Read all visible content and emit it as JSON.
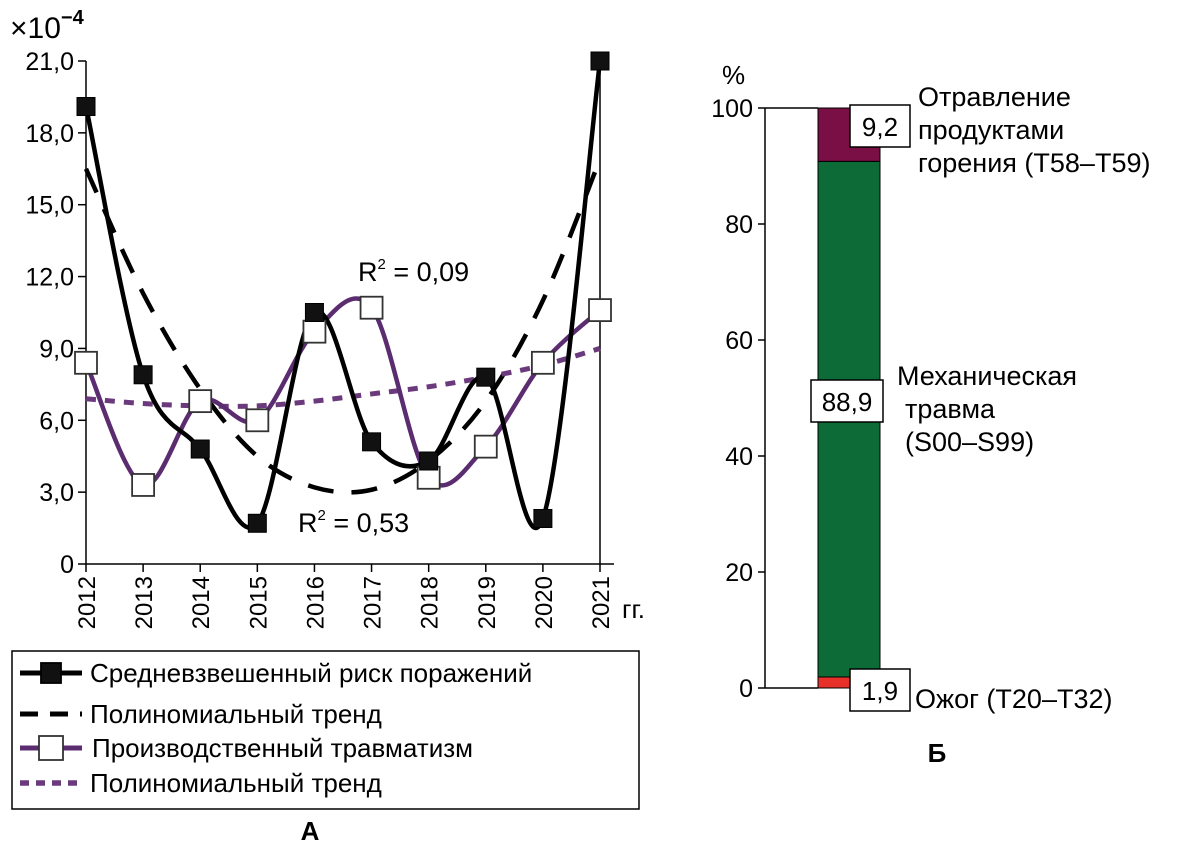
{
  "colors": {
    "risk": "#000000",
    "injury": "#5b2c6f",
    "injury_trend": "#6b3a7d",
    "bar_burn": "#e8302a",
    "bar_mech": "#0d6b38",
    "bar_poison": "#7a0f45"
  },
  "chart_data": [
    {
      "type": "line",
      "panel_label": "А",
      "y_multiplier": "×10",
      "y_multiplier_exp": "−4",
      "x_unit": "гг.",
      "xlim": [
        2012,
        2021
      ],
      "ylim": [
        0,
        21
      ],
      "x": [
        "2012",
        "2013",
        "2014",
        "2015",
        "2016",
        "2017",
        "2018",
        "2019",
        "2020",
        "2021"
      ],
      "y_ticks": [
        "0",
        "3,0",
        "6,0",
        "9,0",
        "12,0",
        "15,0",
        "18,0",
        "21,0"
      ],
      "series": [
        {
          "name": "Средневзвешенный риск поражений",
          "values": [
            19.1,
            7.9,
            4.8,
            1.7,
            10.5,
            5.1,
            4.3,
            7.8,
            1.9,
            21.0
          ]
        },
        {
          "name": "Полиномиальный тренд",
          "values": [
            16.5,
            11.3,
            7.3,
            4.5,
            3.2,
            3.1,
            4.3,
            6.8,
            11.0,
            16.9
          ]
        },
        {
          "name": "Производственный травматизм",
          "values": [
            8.4,
            3.3,
            6.8,
            6.0,
            9.7,
            10.7,
            3.6,
            4.9,
            8.4,
            10.6
          ]
        },
        {
          "name": "Полиномиальный тренд",
          "values": [
            6.9,
            6.7,
            6.6,
            6.6,
            6.8,
            7.1,
            7.4,
            7.8,
            8.3,
            9.0
          ]
        }
      ],
      "annotations": [
        {
          "text": "R",
          "sup": "2",
          "rest": " = 0,09"
        },
        {
          "text": "R",
          "sup": "2",
          "rest": " = 0,53"
        }
      ]
    },
    {
      "type": "bar",
      "panel_label": "Б",
      "y_unit": "%",
      "ylim": [
        0,
        100
      ],
      "y_ticks": [
        "0",
        "20",
        "40",
        "60",
        "80",
        "100"
      ],
      "stacked": true,
      "segments": [
        {
          "value": 1.9,
          "value_label": "1,9",
          "label_lines": [
            "Ожог (Т20–Т32)"
          ]
        },
        {
          "value": 88.9,
          "value_label": "88,9",
          "label_lines": [
            "Механическая",
            "травма",
            "(S00–S99)"
          ]
        },
        {
          "value": 9.2,
          "value_label": "9,2",
          "label_lines": [
            "Отравление",
            "продуктами",
            "горения (Т58–Т59)"
          ]
        }
      ]
    }
  ]
}
